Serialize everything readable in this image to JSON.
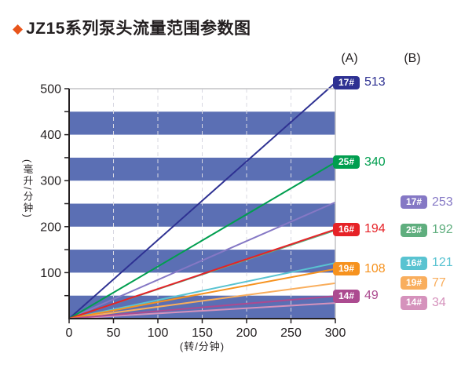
{
  "title": {
    "diamond": "◆",
    "diamond_color": "#E8541A",
    "text": "JZ15系列泵头流量范围参数图"
  },
  "columns": {
    "a_label": "(A)",
    "b_label": "(B)"
  },
  "chart_data": {
    "type": "line",
    "title": "JZ15系列泵头流量范围参数图",
    "xlabel": "(转/分钟)",
    "ylabel": "(毫升/分钟)",
    "xlim": [
      0,
      300
    ],
    "ylim": [
      0,
      500
    ],
    "x_ticks": [
      0,
      50,
      100,
      150,
      200,
      250,
      300
    ],
    "y_tick_labels": [
      100,
      200,
      300,
      400,
      500
    ],
    "y_minor_tick_step": 50,
    "grid": "vertical-dashed",
    "grid_color": "#D8D8E2",
    "frame_color": "#C4C4C6",
    "axis_color": "#231F20",
    "plot_bands": {
      "color": "#5B6FB4",
      "ranges": [
        [
          0,
          50
        ],
        [
          100,
          150
        ],
        [
          200,
          250
        ],
        [
          300,
          350
        ],
        [
          400,
          450
        ]
      ]
    },
    "legend_position": "right",
    "series": [
      {
        "group": "B",
        "name": "17#",
        "color": "#8578C5",
        "x": [
          0,
          300
        ],
        "values": [
          0,
          253
        ]
      },
      {
        "group": "B",
        "name": "25#",
        "color": "#5FAE7E",
        "x": [
          0,
          300
        ],
        "values": [
          0,
          192
        ]
      },
      {
        "group": "B",
        "name": "16#",
        "color": "#59C3D1",
        "x": [
          0,
          300
        ],
        "values": [
          0,
          121
        ]
      },
      {
        "group": "B",
        "name": "19#",
        "color": "#F9AE5D",
        "x": [
          0,
          300
        ],
        "values": [
          0,
          77
        ]
      },
      {
        "group": "B",
        "name": "14#",
        "color": "#D592BC",
        "x": [
          0,
          300
        ],
        "values": [
          0,
          34
        ]
      },
      {
        "group": "A",
        "name": "17#",
        "color": "#2E3192",
        "x": [
          0,
          300
        ],
        "values": [
          0,
          513
        ]
      },
      {
        "group": "A",
        "name": "25#",
        "color": "#009E4F",
        "x": [
          0,
          300
        ],
        "values": [
          0,
          340
        ]
      },
      {
        "group": "A",
        "name": "16#",
        "color": "#E62227",
        "x": [
          0,
          300
        ],
        "values": [
          0,
          194
        ]
      },
      {
        "group": "A",
        "name": "19#",
        "color": "#F6921E",
        "x": [
          0,
          300
        ],
        "values": [
          0,
          108
        ]
      },
      {
        "group": "A",
        "name": "14#",
        "color": "#AC4B90",
        "x": [
          0,
          300
        ],
        "values": [
          0,
          49
        ]
      }
    ]
  }
}
